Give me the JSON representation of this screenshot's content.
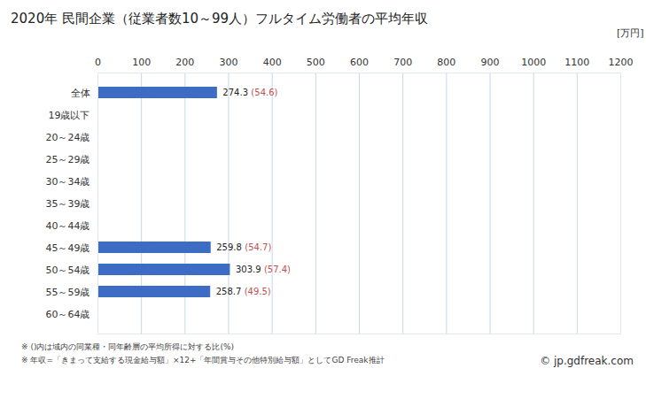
{
  "chart_data": {
    "type": "bar",
    "orientation": "horizontal",
    "title": "2020年 民間企業（従業者数10～99人）フルタイム労働者の平均年収",
    "xlabel": "[万円]",
    "categories": [
      "全体",
      "19歳以下",
      "20～24歳",
      "25～29歳",
      "30～34歳",
      "35～39歳",
      "40～44歳",
      "45～49歳",
      "50～54歳",
      "55～59歳",
      "60～64歳"
    ],
    "values": [
      274.3,
      null,
      null,
      null,
      null,
      null,
      null,
      259.8,
      303.9,
      258.7,
      null
    ],
    "color": "#3d6cc4",
    "data_labels": true,
    "ratio": {
      "values": [
        54.6,
        null,
        null,
        null,
        null,
        null,
        null,
        54.7,
        57.4,
        49.5,
        null
      ],
      "value_labels": [
        "(54.6)",
        null,
        null,
        null,
        null,
        null,
        null,
        "(54.7)",
        "(57.4)",
        "(49.5)",
        null
      ],
      "color": "#c0504d"
    },
    "xlim": [
      0,
      1200
    ],
    "xticks": [
      0,
      100,
      200,
      300,
      400,
      500,
      600,
      700,
      800,
      900,
      1000,
      1100,
      1200
    ],
    "grid": true,
    "notes": [
      "※ ()内は域内の同業種・同年齢層の平均所得に対する比(%)",
      "※ 年収=「きまって支給する現金給与額」×12+「年間賞与その他特別給与額」としてGD Freak推計"
    ],
    "source": "© jp.gdfreak.com"
  }
}
